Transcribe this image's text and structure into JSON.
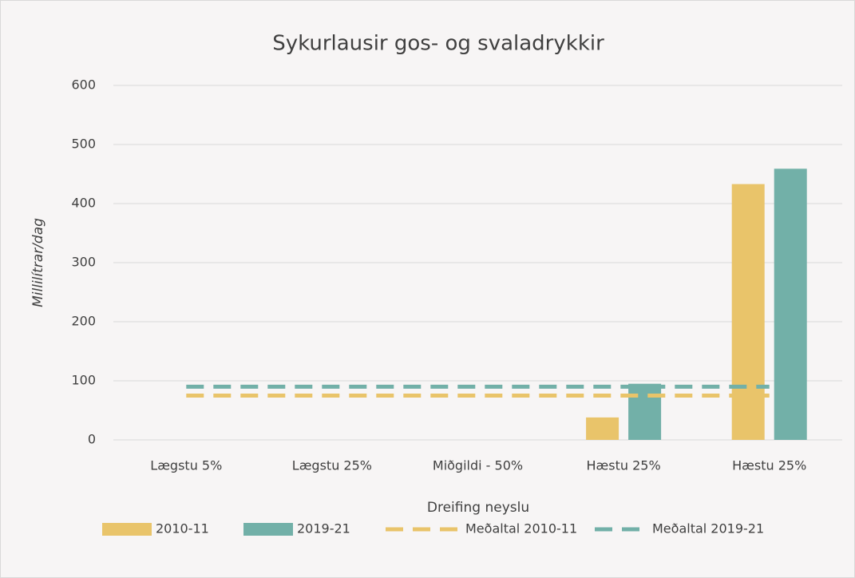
{
  "chart_data": {
    "type": "bar",
    "title": "Sykurlausir gos- og svaladrykkir",
    "x_label": "Dreifing neyslu",
    "y_label": "Millilítrar/dag",
    "categories": [
      "Lægstu 5%",
      "Lægstu 25%",
      "Miðgildi - 50%",
      "Hæstu 25%",
      "Hæstu 25%"
    ],
    "series": [
      {
        "name": "2010-11",
        "type": "bar",
        "color": "#e9c46a",
        "values": [
          0,
          0,
          0,
          38,
          433
        ]
      },
      {
        "name": "2019-21",
        "type": "bar",
        "color": "#72b0a8",
        "values": [
          0,
          0,
          0,
          95,
          459
        ]
      },
      {
        "name": "Meðaltal 2010-11",
        "type": "line",
        "color": "#e9c46a",
        "values": [
          75,
          75,
          75,
          75,
          75
        ]
      },
      {
        "name": "Meðaltal 2019-21",
        "type": "line",
        "color": "#72b0a8",
        "values": [
          90,
          90,
          90,
          90,
          90
        ]
      }
    ],
    "ylim": [
      0,
      600
    ],
    "yticks": [
      0,
      100,
      200,
      300,
      400,
      500,
      600
    ],
    "grid": true,
    "legend": "bottom"
  }
}
